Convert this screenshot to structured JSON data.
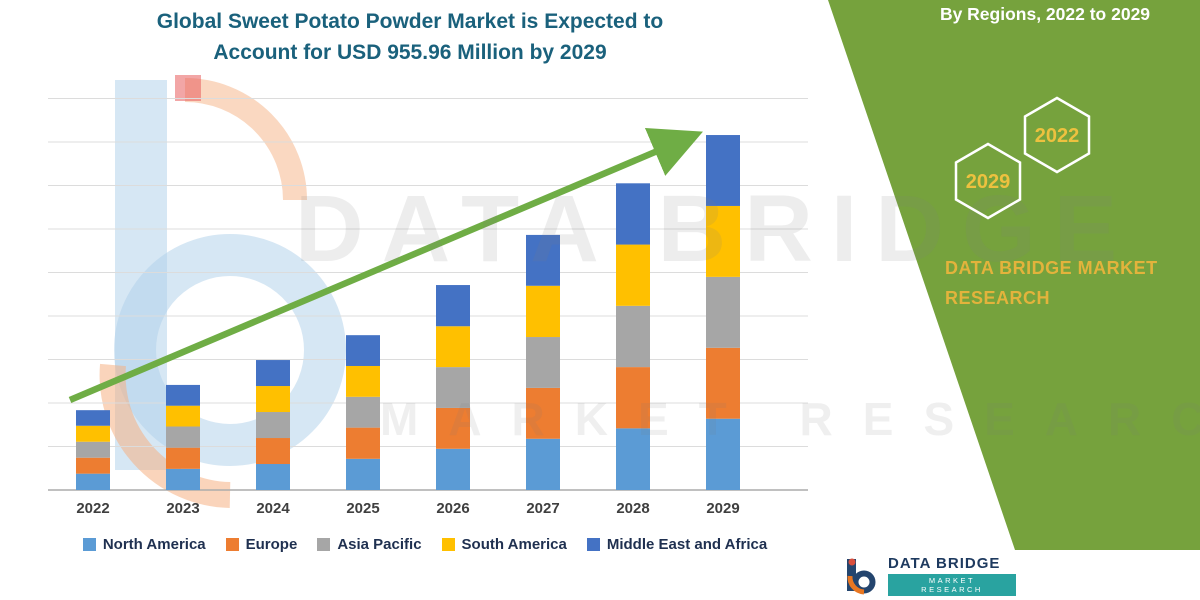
{
  "title": {
    "line1": "Global Sweet Potato Powder Market is Expected to",
    "line2": "Account for USD 955.96 Million by 2029"
  },
  "side_panel": {
    "heading": "By Regions, 2022 to 2029",
    "hexagon_top_year": "2022",
    "hexagon_bottom_year": "2029",
    "brand_line1": "DATA BRIDGE MARKET",
    "brand_line2": "RESEARCH"
  },
  "watermark": {
    "line1": "DATA BRIDGE",
    "line2": "MARKET RESEARCH"
  },
  "footer_logo": {
    "name": "DATA BRIDGE",
    "tagline": "MARKET RESEARCH"
  },
  "colors": {
    "panel_green": "#76A23D",
    "arrow_green": "#6FAD45",
    "title_teal": "#1A617C",
    "brand_gold": "#E3B33C",
    "hexagon_year_gold": "#EDC13F"
  },
  "chart_data": {
    "type": "bar",
    "stacked": true,
    "unit": "USD Million",
    "title": "Global Sweet Potato Powder Market is Expected to Account for USD 955.96 Million by 2029",
    "categories": [
      "2022",
      "2023",
      "2024",
      "2025",
      "2026",
      "2027",
      "2028",
      "2029"
    ],
    "series": [
      {
        "name": "North America",
        "color": "#5B9BD5",
        "values": [
          44,
          57,
          70,
          84,
          111,
          138,
          166,
          192
        ]
      },
      {
        "name": "Europe",
        "color": "#ED7D31",
        "values": [
          43,
          57,
          70,
          84,
          110,
          137,
          165,
          191
        ]
      },
      {
        "name": "Asia Pacific",
        "color": "#A6A6A6",
        "values": [
          43,
          57,
          70,
          83,
          110,
          137,
          165,
          191
        ]
      },
      {
        "name": "South America",
        "color": "#FFC000",
        "values": [
          43,
          56,
          70,
          83,
          110,
          138,
          165,
          191
        ]
      },
      {
        "name": "Middle East and Africa",
        "color": "#4472C4",
        "values": [
          42,
          56,
          70,
          83,
          111,
          137,
          165,
          191
        ]
      }
    ],
    "totals_estimated": [
      215,
      283,
      350,
      417,
      552,
      687,
      826,
      956
    ],
    "ylim": [
      0,
      1050
    ],
    "grid": "horizontal gridlines, no y-axis tick labels",
    "legend_position": "bottom",
    "trend_arrow": "green upward arrow from first bar to last bar"
  }
}
